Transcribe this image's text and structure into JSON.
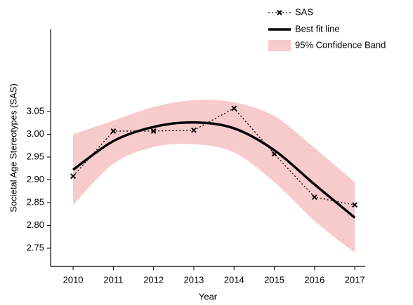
{
  "chart_data": {
    "type": "line",
    "x_label": "Year",
    "y_label": "Societal Age Stereotypes (SAS)",
    "x": [
      2010,
      2011,
      2012,
      2013,
      2014,
      2015,
      2016,
      2017
    ],
    "xlim": [
      2009.44,
      2017.26
    ],
    "xticks": [
      2010,
      2011,
      2012,
      2013,
      2014,
      2015,
      2016,
      2017
    ],
    "ylim": [
      2.71,
      3.23
    ],
    "yticks": [
      2.75,
      {
        "value": 2.8,
        "label": "2.80"
      },
      2.85,
      {
        "value": 2.9,
        "label": "2.90"
      },
      2.95,
      {
        "value": 3,
        "label": "3.00"
      },
      3.05
    ],
    "series": [
      {
        "name": "SAS",
        "color": "#000000",
        "values": [
          2.908,
          3.007,
          3.007,
          3.009,
          3.057,
          2.957,
          2.862,
          2.845
        ]
      },
      {
        "name": "Best fit line",
        "color": "#000000",
        "values": [
          2.922,
          2.985,
          3.016,
          3.026,
          3.013,
          2.965,
          2.89,
          2.817
        ]
      }
    ],
    "band": {
      "name": "95% Confidence Band",
      "color": "#f7cbcb",
      "upper": [
        3.0,
        3.03,
        3.06,
        3.075,
        3.07,
        3.04,
        2.97,
        2.895
      ],
      "lower": [
        2.845,
        2.935,
        2.972,
        2.978,
        2.96,
        2.895,
        2.81,
        2.74
      ]
    },
    "legend": "upper right"
  }
}
